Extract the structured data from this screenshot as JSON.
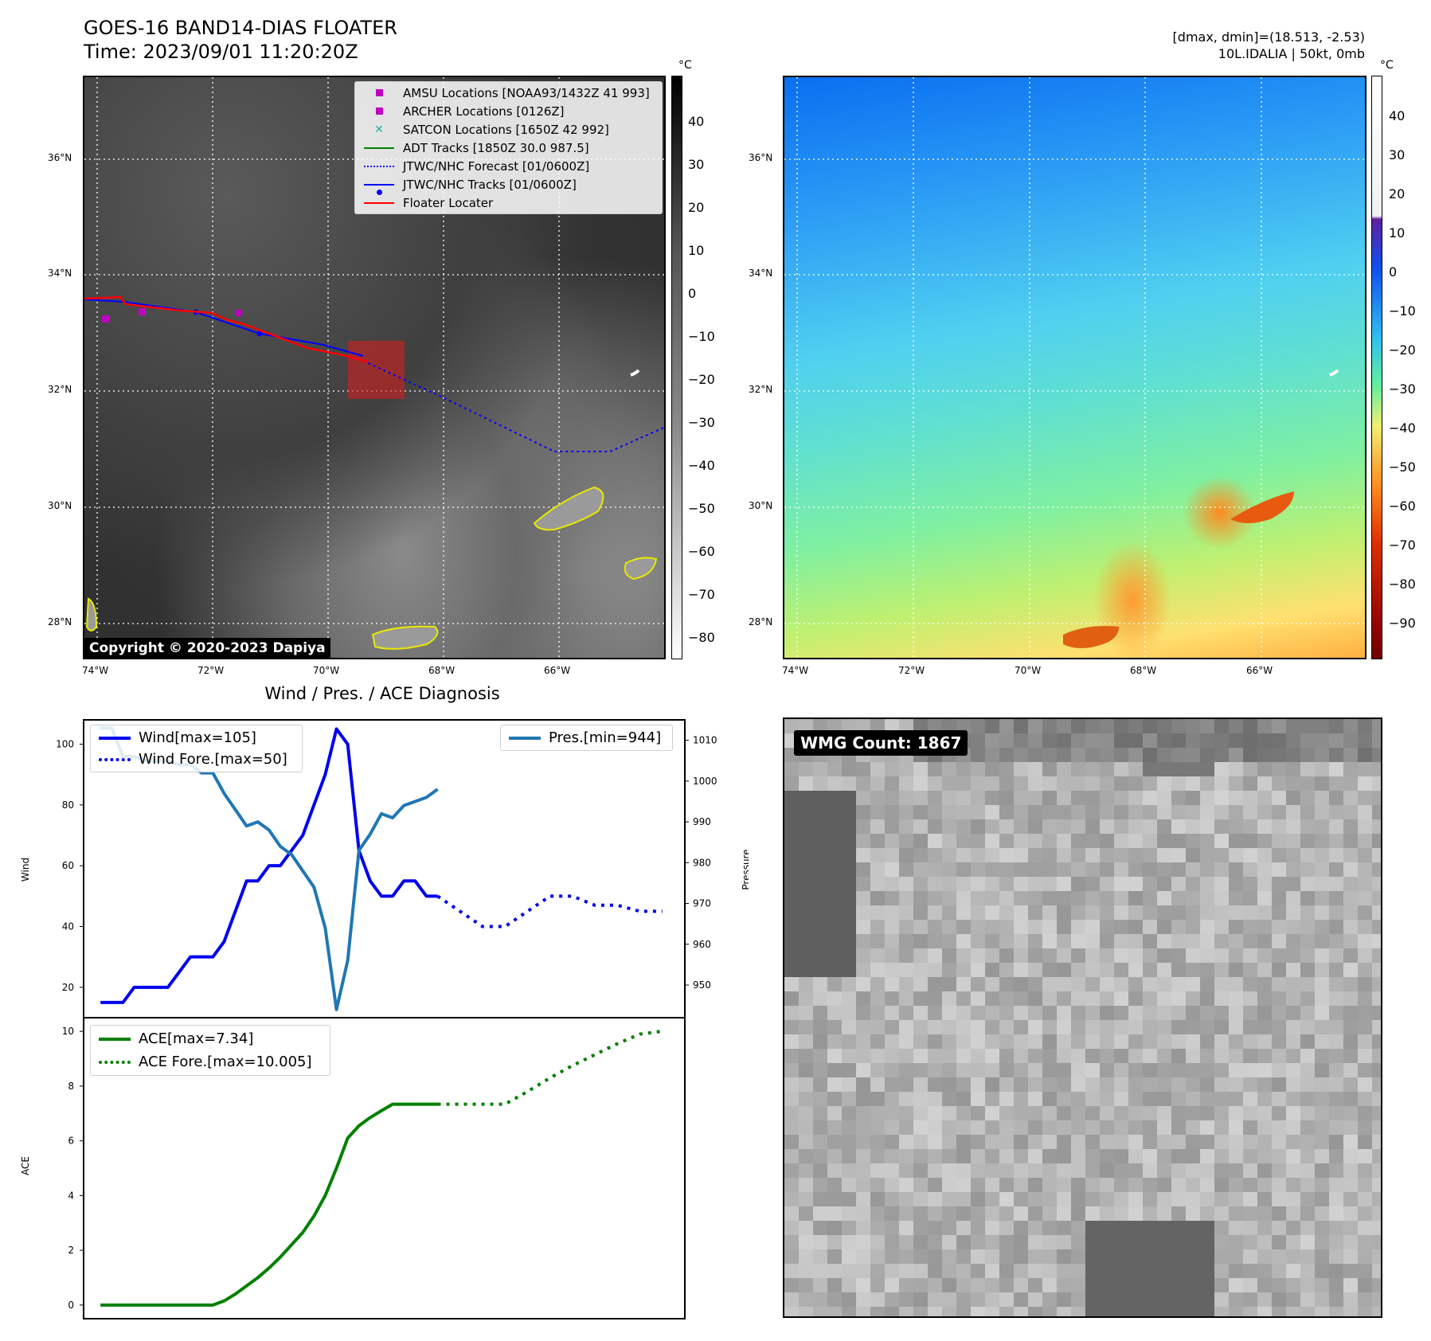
{
  "header": {
    "title_line1": "GOES-16 BAND14-DIAS FLOATER",
    "title_line2": "Time: 2023/09/01 11:20:20Z",
    "right_line1": "[dmax, dmin]=(18.513, -2.53)",
    "right_line2": "10L.IDALIA | 50kt, 0mb"
  },
  "map": {
    "lat_labels": [
      "36°N",
      "34°N",
      "32°N",
      "30°N",
      "28°N"
    ],
    "lon_labels": [
      "74°W",
      "72°W",
      "70°W",
      "68°W",
      "66°W"
    ],
    "copyright": "Copyright © 2020-2023 Dapiya",
    "legend": [
      {
        "label": "AMSU Locations [NOAA93/1432Z 41 993]",
        "kind": "square",
        "color": "#c000c0"
      },
      {
        "label": "ARCHER Locations [0126Z]",
        "kind": "square",
        "color": "#c000c0"
      },
      {
        "label": "SATCON Locations [1650Z 42 992]",
        "kind": "x",
        "color": "#20b0b0"
      },
      {
        "label": "ADT Tracks [1850Z 30.0 987.5]",
        "kind": "line",
        "color": "#008000"
      },
      {
        "label": "JTWC/NHC Forecast [01/0600Z]",
        "kind": "dotted",
        "color": "#0000ff"
      },
      {
        "label": "JTWC/NHC Tracks [01/0600Z]",
        "kind": "dotline",
        "color": "#0000ff"
      },
      {
        "label": "Floater Locater",
        "kind": "line",
        "color": "#ff0000"
      }
    ],
    "colorbar_gray": {
      "unit": "°C",
      "ticks": [
        "40",
        "30",
        "20",
        "10",
        "0",
        "−10",
        "−20",
        "−30",
        "−40",
        "−50",
        "−60",
        "−70",
        "−80"
      ]
    },
    "colorbar_color": {
      "unit": "°C",
      "ticks": [
        "40",
        "30",
        "20",
        "10",
        "0",
        "−10",
        "−20",
        "−30",
        "−40",
        "−50",
        "−60",
        "−70",
        "−80",
        "−90"
      ]
    }
  },
  "wmg": {
    "label": "WMG Count: 1867"
  },
  "chart_data": [
    {
      "type": "line",
      "title": "Wind / Pres. / ACE Diagnosis",
      "ylabel": "Wind",
      "ylim": [
        10,
        108
      ],
      "yticks": [
        20,
        40,
        60,
        80,
        100
      ],
      "x": [
        0,
        1,
        2,
        3,
        4,
        5,
        6,
        7,
        8,
        9,
        10,
        11,
        12,
        13,
        14,
        15,
        16,
        17,
        18,
        19,
        20,
        21,
        22,
        23,
        24,
        25,
        26,
        27,
        28,
        29,
        30,
        31,
        32,
        33,
        34,
        35,
        36,
        37,
        38,
        39,
        40,
        41,
        42,
        43,
        44,
        45,
        46,
        47,
        48,
        49,
        50
      ],
      "series": [
        {
          "name": "Wind[max=105]",
          "style": "solid",
          "color": "#0000ee",
          "x": [
            0,
            1,
            2,
            3,
            4,
            5,
            6,
            7,
            8,
            9,
            10,
            11,
            12,
            13,
            14,
            15,
            16,
            17,
            18,
            19,
            20,
            21,
            22,
            23,
            24,
            25,
            26,
            27,
            28,
            29,
            30
          ],
          "values": [
            15,
            15,
            15,
            20,
            20,
            20,
            20,
            25,
            30,
            30,
            30,
            35,
            45,
            55,
            55,
            60,
            60,
            65,
            70,
            80,
            90,
            105,
            100,
            65,
            55,
            50,
            50,
            55,
            55,
            50,
            50
          ]
        },
        {
          "name": "Wind Fore.[max=50]",
          "style": "dotted",
          "color": "#0000ee",
          "x": [
            30,
            32,
            34,
            36,
            38,
            40,
            42,
            44,
            46,
            48,
            50
          ],
          "values": [
            50,
            45,
            40,
            40,
            45,
            50,
            50,
            47,
            47,
            45,
            45
          ]
        },
        {
          "name": "Pres.[min=944]",
          "style": "solid",
          "color": "#1f77b4",
          "axis": "right",
          "x": [
            0,
            1,
            2,
            3,
            4,
            5,
            6,
            7,
            8,
            9,
            10,
            11,
            12,
            13,
            14,
            15,
            16,
            17,
            18,
            19,
            20,
            21,
            22,
            23,
            24,
            25,
            26,
            27,
            28,
            29,
            30
          ],
          "values": [
            1013,
            1013,
            1006,
            1006,
            1005,
            1005,
            1005,
            1004,
            1004,
            1002,
            1002,
            997,
            993,
            989,
            990,
            988,
            984,
            982,
            978,
            974,
            964,
            944,
            956,
            983,
            987,
            992,
            991,
            994,
            995,
            996,
            998
          ]
        }
      ],
      "y2label": "Pressure",
      "y2lim": [
        942,
        1015
      ],
      "y2ticks": [
        950,
        960,
        970,
        980,
        990,
        1000,
        1010
      ]
    },
    {
      "type": "line",
      "ylabel": "ACE",
      "ylim": [
        -0.5,
        10.5
      ],
      "yticks": [
        0,
        2,
        4,
        6,
        8,
        10
      ],
      "series": [
        {
          "name": "ACE[max=7.34]",
          "style": "solid",
          "color": "#008000",
          "x": [
            0,
            2,
            4,
            6,
            8,
            10,
            11,
            12,
            13,
            14,
            15,
            16,
            17,
            18,
            19,
            20,
            21,
            22,
            23,
            24,
            25,
            26,
            27,
            28,
            29,
            30
          ],
          "values": [
            0,
            0,
            0,
            0,
            0,
            0,
            0.15,
            0.4,
            0.7,
            1.0,
            1.35,
            1.75,
            2.2,
            2.65,
            3.25,
            4.0,
            5.0,
            6.1,
            6.55,
            6.85,
            7.1,
            7.34,
            7.34,
            7.34,
            7.34,
            7.34
          ]
        },
        {
          "name": "ACE Fore.[max=10.005]",
          "style": "dotted",
          "color": "#008000",
          "x": [
            30,
            32,
            34,
            36,
            38,
            40,
            42,
            44,
            46,
            48,
            50
          ],
          "values": [
            7.34,
            7.34,
            7.34,
            7.34,
            7.8,
            8.3,
            8.75,
            9.15,
            9.55,
            9.9,
            10.005
          ]
        }
      ]
    }
  ]
}
